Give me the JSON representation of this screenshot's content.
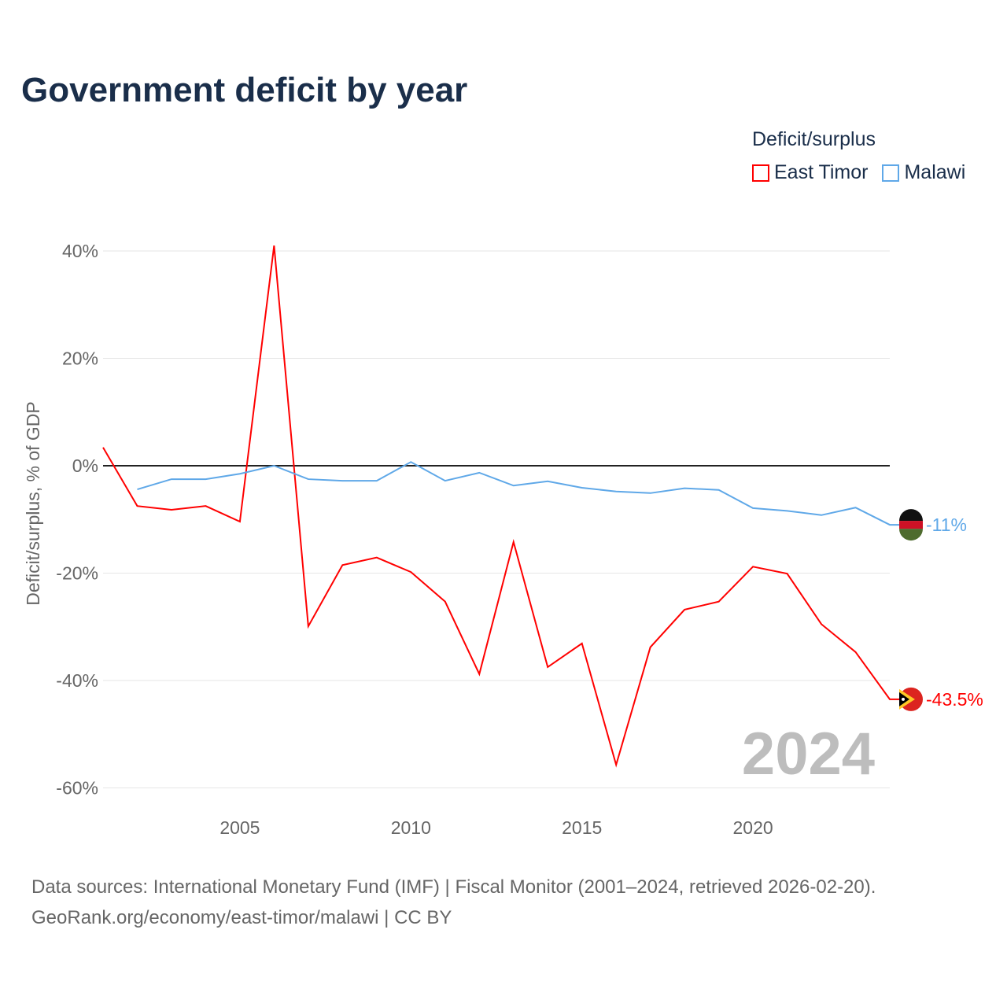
{
  "chart_data": {
    "type": "line",
    "title": "Government deficit by year",
    "ylabel": "Deficit/surplus, % of GDP",
    "xlabel": "",
    "ylim": [
      -60,
      40
    ],
    "xlim": [
      2001,
      2024
    ],
    "yticks": [
      40,
      20,
      0,
      -20,
      -40,
      -60
    ],
    "ytick_labels": [
      "40%",
      "20%",
      "0%",
      "-20%",
      "-40%",
      "-60%"
    ],
    "xticks": [
      2005,
      2010,
      2015,
      2020
    ],
    "xtick_labels": [
      "2005",
      "2010",
      "2015",
      "2020"
    ],
    "grid": true,
    "legend_title": "Deficit/surplus",
    "legend_position": "top-right",
    "watermark_year": "2024",
    "series": [
      {
        "name": "East Timor",
        "color": "#ff0000",
        "end_label": "-43.5%",
        "x": [
          2001,
          2002,
          2003,
          2004,
          2005,
          2006,
          2007,
          2008,
          2009,
          2010,
          2011,
          2012,
          2013,
          2014,
          2015,
          2016,
          2017,
          2018,
          2019,
          2020,
          2021,
          2022,
          2023,
          2024
        ],
        "values": [
          3.4,
          -7.5,
          -8.2,
          -7.5,
          -10.4,
          41.0,
          -29.9,
          -18.5,
          -17.1,
          -19.8,
          -25.3,
          -38.8,
          -14.2,
          -37.5,
          -33.1,
          -55.7,
          -33.8,
          -26.8,
          -25.3,
          -18.8,
          -20.1,
          -29.5,
          -34.7,
          -43.5
        ]
      },
      {
        "name": "Malawi",
        "color": "#5fa8e8",
        "end_label": "-11%",
        "x": [
          2002,
          2003,
          2004,
          2005,
          2006,
          2007,
          2008,
          2009,
          2010,
          2011,
          2012,
          2013,
          2014,
          2015,
          2016,
          2017,
          2018,
          2019,
          2020,
          2021,
          2022,
          2023,
          2024
        ],
        "values": [
          -4.4,
          -2.5,
          -2.5,
          -1.5,
          0.0,
          -2.5,
          -2.8,
          -2.8,
          0.7,
          -2.8,
          -1.3,
          -3.7,
          -2.9,
          -4.1,
          -4.8,
          -5.1,
          -4.2,
          -4.5,
          -7.9,
          -8.4,
          -9.2,
          -7.8,
          -11.0
        ]
      }
    ]
  },
  "footer": {
    "source": "Data sources: International Monetary Fund (IMF) | Fiscal Monitor (2001–2024, retrieved 2026-02-20).",
    "credit": "GeoRank.org/economy/east-timor/malawi | CC BY"
  }
}
